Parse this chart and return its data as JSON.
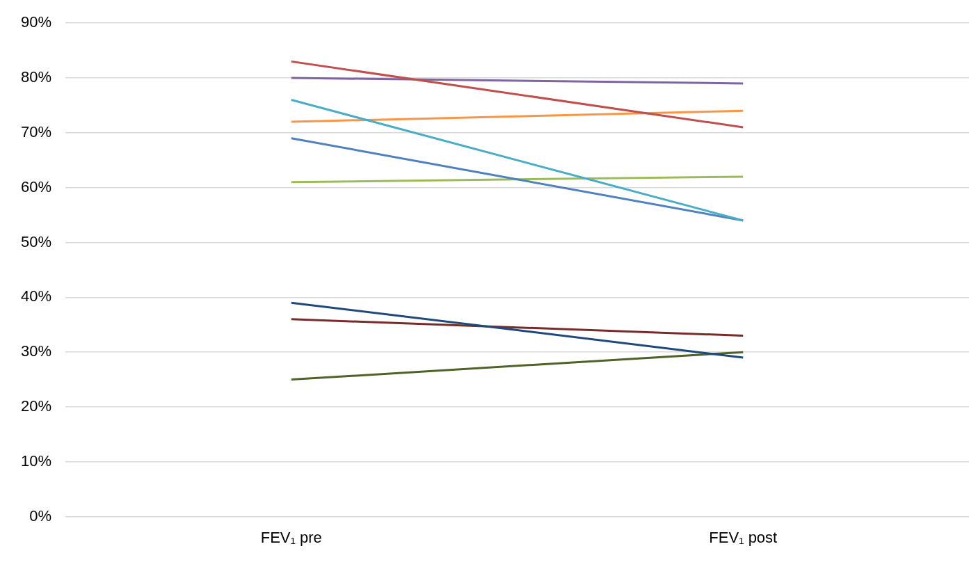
{
  "chart_data": {
    "type": "line",
    "categories": [
      "FEV₁ pre",
      "FEV₁ post"
    ],
    "series": [
      {
        "color": "#c0504d",
        "values": [
          83,
          71
        ]
      },
      {
        "color": "#8064a2",
        "values": [
          80,
          79
        ]
      },
      {
        "color": "#4bacc6",
        "values": [
          76,
          54
        ]
      },
      {
        "color": "#f79646",
        "values": [
          72,
          74
        ]
      },
      {
        "color": "#4f81bd",
        "values": [
          69,
          54
        ]
      },
      {
        "color": "#9bbb59",
        "values": [
          61,
          62
        ]
      },
      {
        "color": "#1f497d",
        "values": [
          39,
          29
        ]
      },
      {
        "color": "#772c2a",
        "values": [
          36,
          33
        ]
      },
      {
        "color": "#4f6228",
        "values": [
          25,
          30
        ]
      }
    ],
    "ylim": [
      0,
      90
    ],
    "yticks": [
      {
        "value": 0,
        "label": "0%"
      },
      {
        "value": 10,
        "label": "10%"
      },
      {
        "value": 20,
        "label": "20%"
      },
      {
        "value": 30,
        "label": "30%"
      },
      {
        "value": 40,
        "label": "40%"
      },
      {
        "value": 50,
        "label": "50%"
      },
      {
        "value": 60,
        "label": "60%"
      },
      {
        "value": 70,
        "label": "70%"
      },
      {
        "value": 80,
        "label": "80%"
      },
      {
        "value": 90,
        "label": "90%"
      }
    ],
    "grid": "y",
    "legend": false,
    "marker": "none",
    "line_style": "solid"
  }
}
